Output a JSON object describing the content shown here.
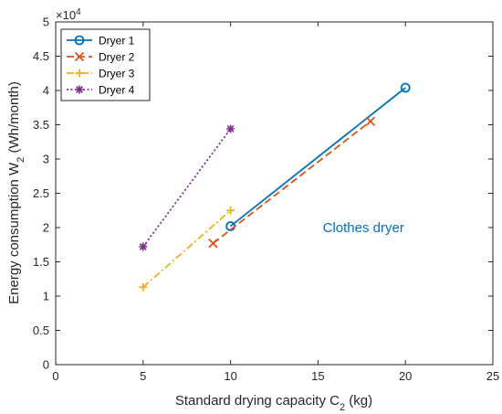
{
  "chart_data": {
    "type": "line",
    "xlabel_main": "Standard drying capacity C",
    "xlabel_sub": "2",
    "xlabel_tail": " (kg)",
    "ylabel_main": "Energy consumption W",
    "ylabel_sub": "2",
    "ylabel_tail": " (Wh/month)",
    "y_exponent_base": "×10",
    "y_exponent_power": "4",
    "xlim": [
      0,
      25
    ],
    "ylim": [
      0,
      5
    ],
    "y_scale_factor": 10000,
    "x_ticks": [
      "0",
      "5",
      "10",
      "15",
      "20",
      "25"
    ],
    "y_ticks": [
      "0",
      "0.5",
      "1",
      "1.5",
      "2",
      "2.5",
      "3",
      "3.5",
      "4",
      "4.5",
      "5"
    ],
    "grid": false,
    "legend_position": "top-left",
    "annotation": {
      "text": "Clothes dryer",
      "x": 17.6,
      "y": 2.0,
      "color": "#0072BD"
    },
    "series": [
      {
        "name": "Dryer 1",
        "color": "#0072BD",
        "marker": "circle",
        "dash": "solid",
        "points": [
          [
            10,
            2.02
          ],
          [
            20,
            4.04
          ]
        ]
      },
      {
        "name": "Dryer 2",
        "color": "#D95319",
        "marker": "x",
        "dash": "dashed",
        "points": [
          [
            9,
            1.77
          ],
          [
            18,
            3.55
          ]
        ]
      },
      {
        "name": "Dryer 3",
        "color": "#EDB120",
        "marker": "plus",
        "dash": "dashdot",
        "points": [
          [
            5,
            1.13
          ],
          [
            10,
            2.25
          ]
        ]
      },
      {
        "name": "Dryer 4",
        "color": "#7E2F8E",
        "marker": "star",
        "dash": "dotted",
        "points": [
          [
            5,
            1.72
          ],
          [
            10,
            3.44
          ]
        ]
      }
    ]
  }
}
